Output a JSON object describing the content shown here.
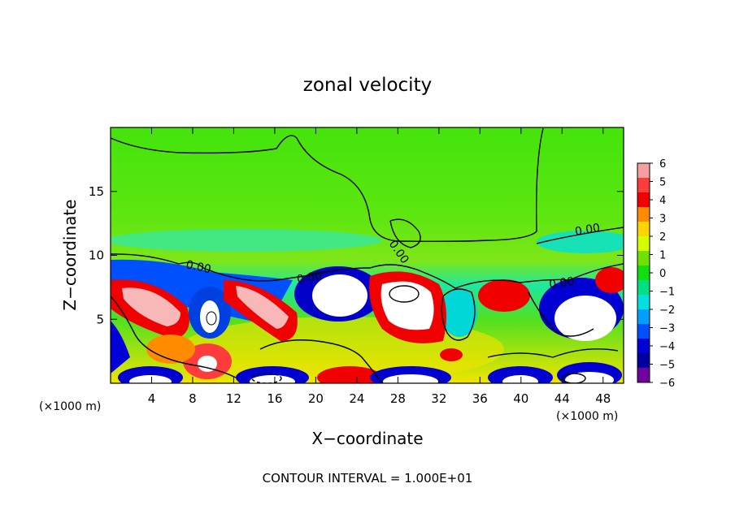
{
  "chart_data": {
    "type": "heatmap",
    "title": "zonal velocity",
    "xlabel": "X−coordinate",
    "ylabel": "Z−coordinate",
    "x_unit_left": "(×1000 m)",
    "x_unit_right": "(×1000 m)",
    "xlim": [
      0,
      50
    ],
    "ylim": [
      0,
      20
    ],
    "x_ticks": [
      4,
      8,
      12,
      16,
      20,
      24,
      28,
      32,
      36,
      40,
      44,
      48
    ],
    "y_ticks": [
      5,
      10,
      15
    ],
    "colorbar": {
      "min": -6,
      "max": 6,
      "ticks": [
        6,
        5,
        4,
        3,
        2,
        1,
        0,
        -1,
        -2,
        -3,
        -4,
        -5,
        -6
      ],
      "tick_labels": [
        "6",
        "5",
        "4",
        "3",
        "2",
        "1",
        "0",
        "−1",
        "−2",
        "−3",
        "−4",
        "−5",
        "−6"
      ],
      "colors_top_to_bottom": [
        "#f4a0a0",
        "#ff3c3c",
        "#f00000",
        "#ff8c00",
        "#ffd400",
        "#d4ff00",
        "#70e000",
        "#10e010",
        "#00e080",
        "#00e0e0",
        "#00a0ff",
        "#0050ff",
        "#0000d8",
        "#0000a0",
        "#7000a0"
      ]
    },
    "contour_labels": [
      "0.00",
      "0.00",
      "0.00",
      "0.00",
      "0.00"
    ],
    "footer": "CONTOUR INTERVAL = 1.000E+01"
  }
}
